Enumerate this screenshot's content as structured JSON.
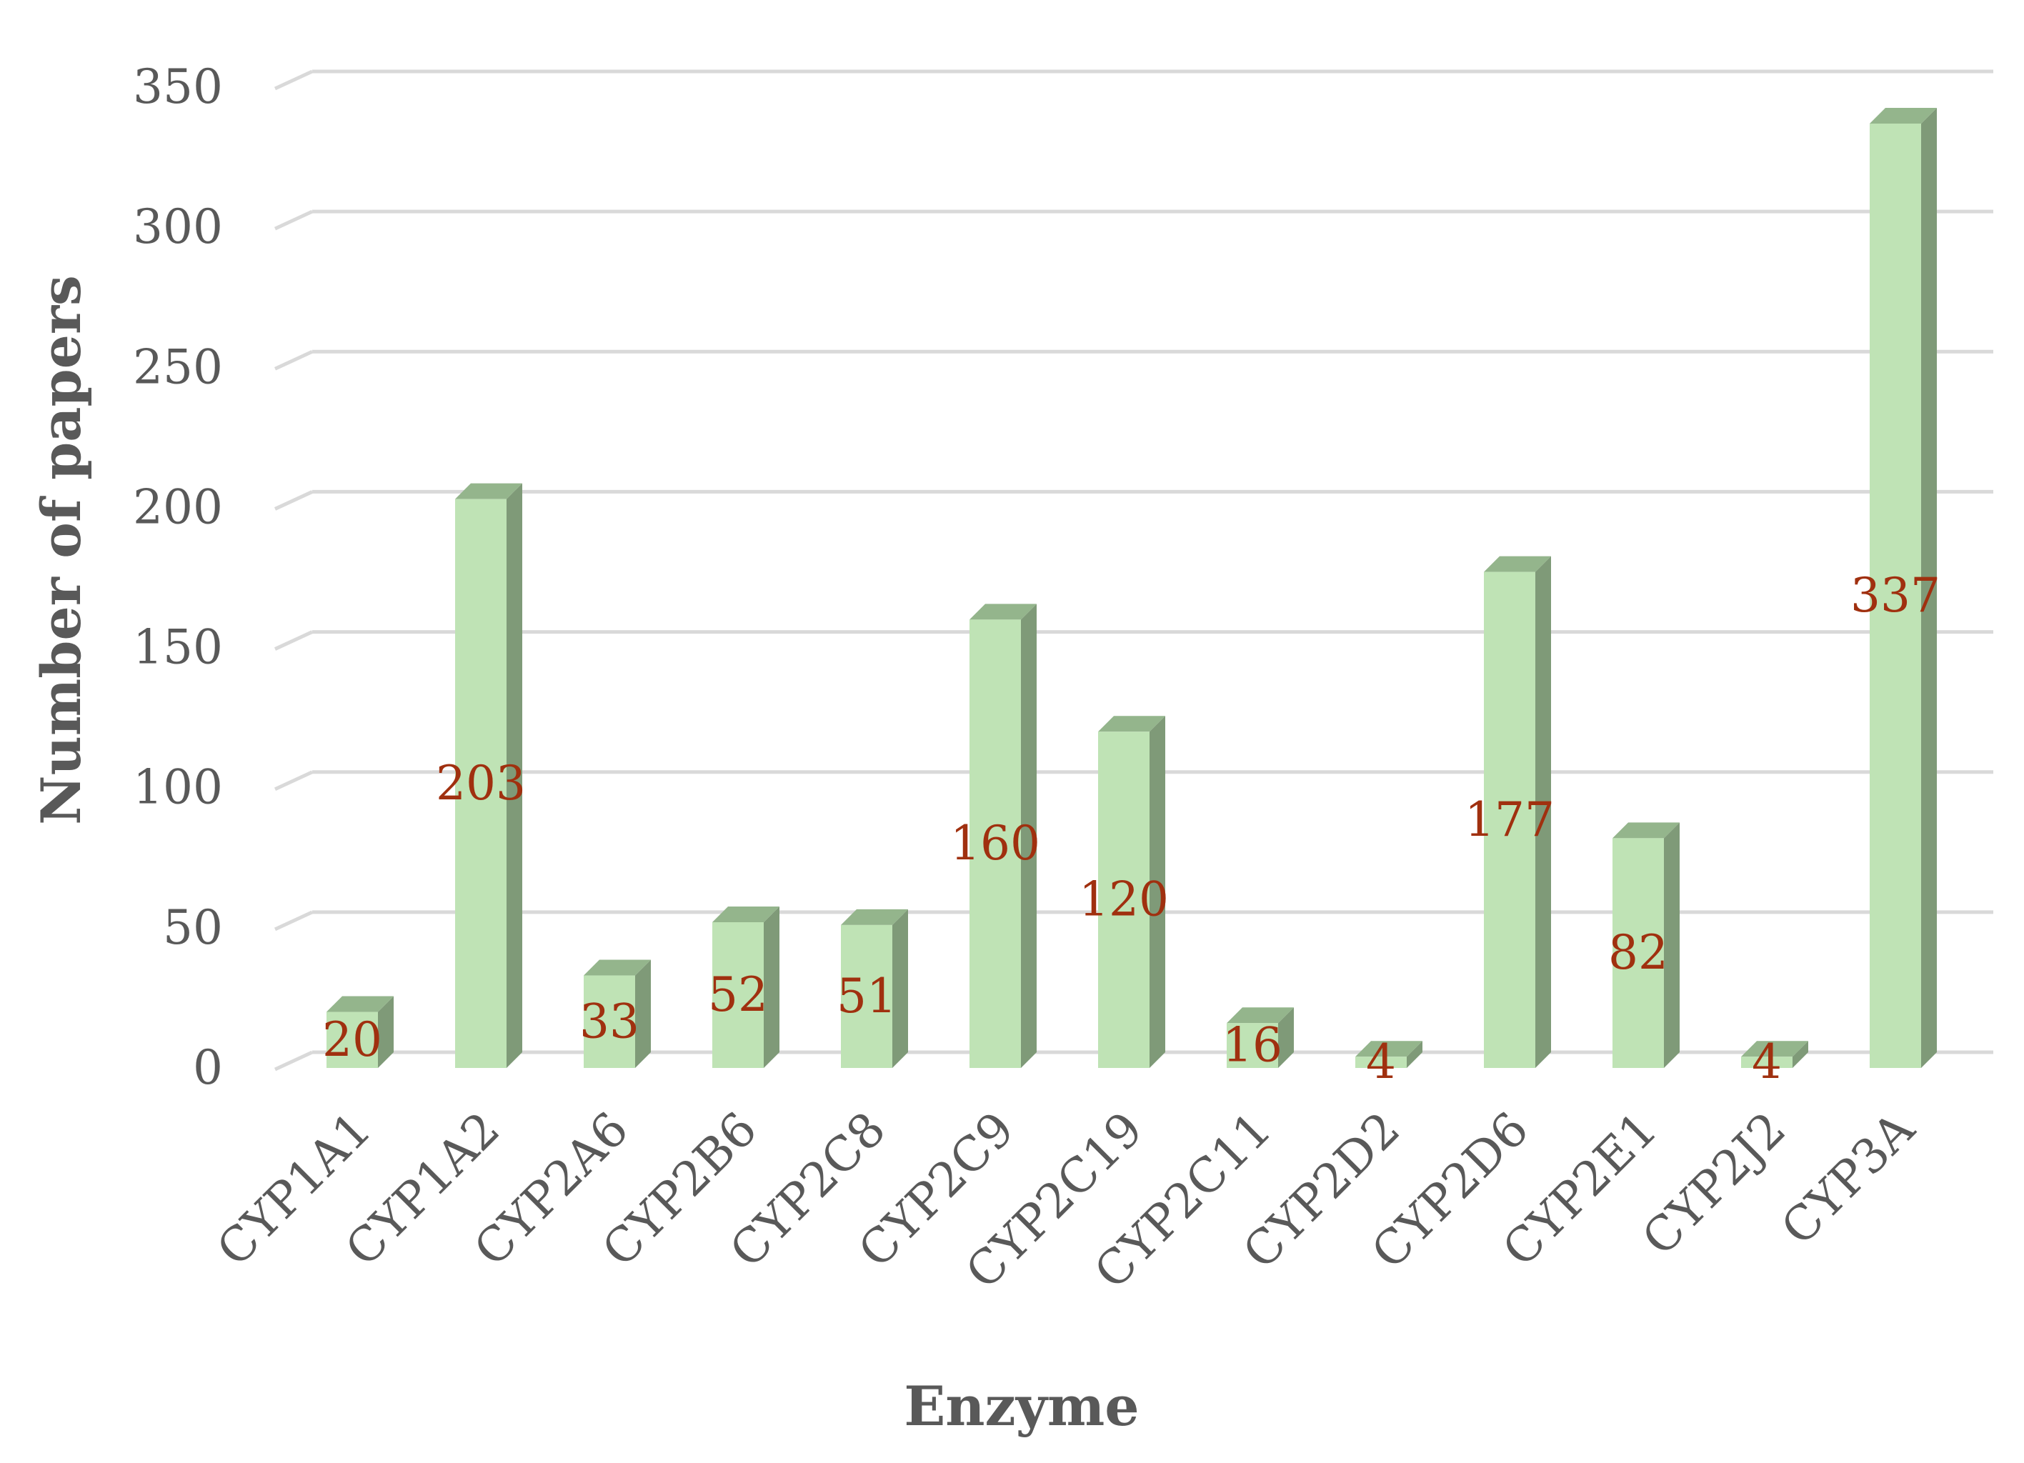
{
  "chart_data": {
    "type": "bar",
    "xlabel": "Enzyme",
    "ylabel": "Number of papers",
    "categories": [
      "CYP1A1",
      "CYP1A2",
      "CYP2A6",
      "CYP2B6",
      "CYP2C8",
      "CYP2C9",
      "CYP2C19",
      "CYP2C11",
      "CYP2D2",
      "CYP2D6",
      "CYP2E1",
      "CYP2J2",
      "CYP3A"
    ],
    "values": [
      20,
      203,
      33,
      52,
      51,
      160,
      120,
      16,
      4,
      177,
      82,
      4,
      337
    ],
    "ylim": [
      0,
      350
    ],
    "yticks": [
      0,
      50,
      100,
      150,
      200,
      250,
      300,
      350
    ],
    "grid": true,
    "legend": "none",
    "style": "3d-column",
    "colors": {
      "bar_front": "#bfe3b5",
      "bar_side": "#7f9a78",
      "bar_top": "#94b58c",
      "data_label": "#a0300f",
      "axis_text": "#595959",
      "gridline": "#d9d9d9"
    }
  }
}
